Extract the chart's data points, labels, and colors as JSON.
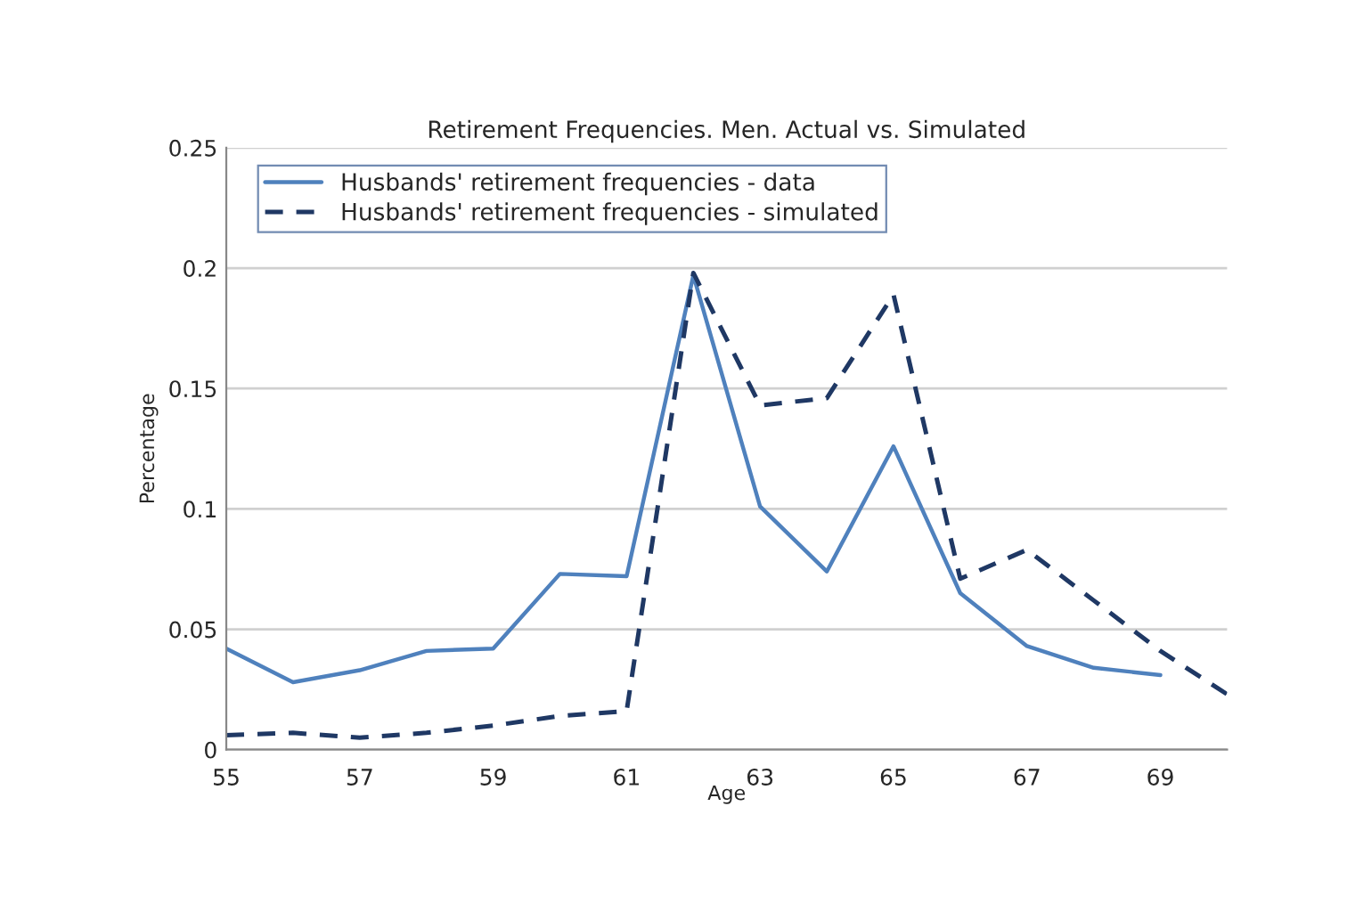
{
  "chart_data": {
    "type": "line",
    "title": "Retirement Frequencies. Men. Actual vs. Simulated",
    "xlabel": "Age",
    "ylabel": "Percentage",
    "series": [
      {
        "name": "Husbands' retirement frequencies - data",
        "color": "#4f81bd",
        "line_style": "solid",
        "x": [
          55,
          56,
          57,
          58,
          59,
          60,
          61,
          62,
          63,
          64,
          65,
          66,
          67,
          68,
          69
        ],
        "values": [
          0.042,
          0.028,
          0.033,
          0.041,
          0.042,
          0.073,
          0.072,
          0.197,
          0.101,
          0.074,
          0.126,
          0.065,
          0.043,
          0.034,
          0.031
        ]
      },
      {
        "name": "Husbands' retirement frequencies - simulated",
        "color": "#1f3864",
        "line_style": "dashed",
        "x": [
          55,
          56,
          57,
          58,
          59,
          60,
          61,
          62,
          63,
          64,
          65,
          66,
          67,
          68,
          69,
          70
        ],
        "values": [
          0.006,
          0.007,
          0.005,
          0.007,
          0.01,
          0.014,
          0.016,
          0.198,
          0.143,
          0.146,
          0.189,
          0.071,
          0.083,
          0.062,
          0.041,
          0.023
        ]
      }
    ],
    "xlim": [
      55,
      70
    ],
    "xticks": [
      55,
      57,
      59,
      61,
      63,
      65,
      67,
      69
    ],
    "ylim": [
      0,
      0.25
    ],
    "yticks": [
      0,
      0.05,
      0.1,
      0.15,
      0.2,
      0.25
    ],
    "grid": "y",
    "legend": "top left",
    "marker": "none"
  }
}
